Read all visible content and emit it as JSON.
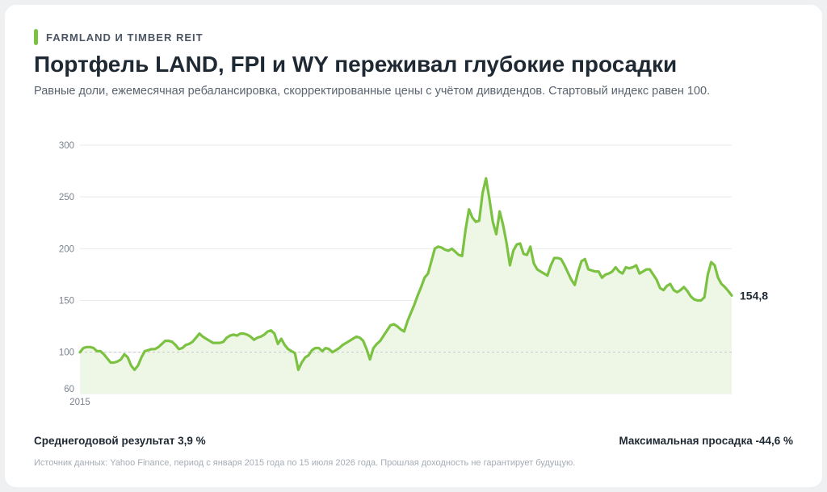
{
  "header": {
    "kicker": "FARMLAND И TIMBER REIT",
    "title": "Портфель LAND, FPI и WY переживал глубокие просадки",
    "subtitle": "Равные доли, ежемесячная ребалансировка, скорректированные цены с учётом дивидендов. Стартовый индекс равен 100."
  },
  "footer": {
    "cagr": "Среднегодовой результат 3,9 %",
    "max_drawdown": "Максимальная просадка -44,6 %",
    "source": "Источник данных: Yahoo Finance, период с января 2015 года по 15 июля 2026 года. Прошлая доходность не гарантирует будущую."
  },
  "colors": {
    "line": "#7cc242",
    "area": "#eef7e5",
    "grid": "#e9ebee",
    "baseline": "#c4c8cd",
    "axis_text": "#7b838d"
  },
  "chart_data": {
    "type": "area",
    "title": "Портфель LAND, FPI и WY переживал глубокие просадки",
    "ylim": [
      60,
      300
    ],
    "yticks": [
      60,
      100,
      150,
      200,
      250,
      300
    ],
    "ytick_labels": [
      "60",
      "100",
      "150",
      "200",
      "250",
      "300"
    ],
    "x_labels": [
      "2015"
    ],
    "reference_line": 100,
    "last_value_label": "154,8",
    "grid": true,
    "values": [
      100,
      104,
      105,
      105,
      104,
      101,
      101,
      98,
      94,
      90,
      90,
      91,
      93,
      98,
      95,
      87,
      83,
      87,
      95,
      101,
      102,
      103,
      103,
      105,
      108,
      111,
      111,
      110,
      107,
      103,
      104,
      107,
      108,
      110,
      114,
      118,
      115,
      113,
      111,
      109,
      109,
      109,
      110,
      114,
      116,
      117,
      116,
      118,
      118,
      117,
      115,
      112,
      114,
      115,
      117,
      120,
      121,
      118,
      108,
      113,
      107,
      103,
      101,
      99,
      83,
      90,
      95,
      97,
      102,
      104,
      104,
      101,
      104,
      103,
      100,
      102,
      104,
      107,
      109,
      111,
      113,
      115,
      114,
      111,
      103,
      93,
      104,
      108,
      111,
      116,
      121,
      126,
      127,
      125,
      122,
      120,
      130,
      138,
      146,
      155,
      163,
      172,
      176,
      188,
      200,
      202,
      201,
      199,
      198,
      200,
      197,
      194,
      193,
      218,
      238,
      230,
      226,
      227,
      254,
      268,
      248,
      226,
      214,
      236,
      223,
      206,
      184,
      198,
      204,
      205,
      195,
      194,
      202,
      186,
      180,
      178,
      176,
      174,
      184,
      191,
      191,
      190,
      184,
      177,
      170,
      165,
      178,
      188,
      190,
      180,
      179,
      178,
      178,
      172,
      175,
      176,
      178,
      182,
      178,
      176,
      182,
      181,
      182,
      184,
      176,
      178,
      180,
      180,
      175,
      170,
      162,
      160,
      164,
      166,
      160,
      158,
      160,
      163,
      159,
      154,
      151,
      150,
      150,
      153,
      175,
      187,
      184,
      172,
      166,
      163,
      159,
      154.8
    ]
  }
}
